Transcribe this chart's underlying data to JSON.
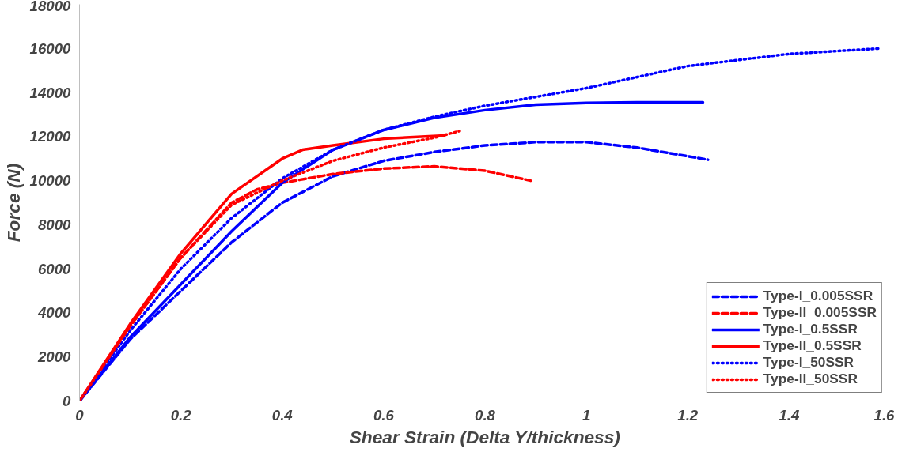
{
  "chart_data": {
    "type": "line",
    "xlabel": "Shear Strain (Delta Y/thickness)",
    "ylabel": "Force (N)",
    "xlim": [
      0,
      1.6
    ],
    "ylim": [
      0,
      18000
    ],
    "xticks": [
      0,
      0.2,
      0.4,
      0.6,
      0.8,
      1,
      1.2,
      1.4,
      1.6
    ],
    "yticks": [
      0,
      2000,
      4000,
      6000,
      8000,
      10000,
      12000,
      14000,
      16000,
      18000
    ],
    "grid": false,
    "legend": "bottom right",
    "series": [
      {
        "name": "Type-I_0.005SSR",
        "color": "#0000ff",
        "line_style": "dashed",
        "x": [
          0,
          0.1,
          0.2,
          0.3,
          0.4,
          0.5,
          0.6,
          0.7,
          0.8,
          0.9,
          1.0,
          1.1,
          1.24
        ],
        "values": [
          0,
          2800,
          5000,
          7200,
          9000,
          10200,
          10900,
          11300,
          11600,
          11750,
          11750,
          11500,
          10950
        ]
      },
      {
        "name": "Type-II_0.005SSR",
        "color": "#ff0000",
        "line_style": "dashed",
        "x": [
          0,
          0.1,
          0.2,
          0.3,
          0.35,
          0.4,
          0.5,
          0.6,
          0.7,
          0.8,
          0.89
        ],
        "values": [
          0,
          3400,
          6500,
          9000,
          9600,
          9900,
          10300,
          10550,
          10650,
          10450,
          10000
        ]
      },
      {
        "name": "Type-I_0.5SSR",
        "color": "#0000ff",
        "line_style": "solid",
        "x": [
          0,
          0.1,
          0.2,
          0.3,
          0.4,
          0.5,
          0.6,
          0.7,
          0.8,
          0.9,
          1.0,
          1.1,
          1.23
        ],
        "values": [
          0,
          2900,
          5300,
          7700,
          9900,
          11400,
          12300,
          12850,
          13200,
          13450,
          13530,
          13550,
          13550
        ]
      },
      {
        "name": "Type-II_0.5SSR",
        "color": "#ff0000",
        "line_style": "solid",
        "x": [
          0,
          0.1,
          0.2,
          0.3,
          0.4,
          0.44,
          0.5,
          0.6,
          0.72
        ],
        "values": [
          0,
          3500,
          6700,
          9400,
          11000,
          11400,
          11600,
          11900,
          12050
        ]
      },
      {
        "name": "Type-I_50SSR",
        "color": "#0000ff",
        "line_style": "dotted",
        "x": [
          0,
          0.1,
          0.2,
          0.3,
          0.4,
          0.5,
          0.6,
          0.7,
          0.8,
          1.0,
          1.2,
          1.4,
          1.58
        ],
        "values": [
          0,
          3200,
          6000,
          8300,
          10100,
          11400,
          12300,
          12900,
          13400,
          14200,
          15200,
          15750,
          16000
        ]
      },
      {
        "name": "Type-II_50SSR",
        "color": "#ff0000",
        "line_style": "dotted",
        "x": [
          0,
          0.1,
          0.2,
          0.3,
          0.4,
          0.5,
          0.6,
          0.7,
          0.75
        ],
        "values": [
          0,
          3400,
          6500,
          8900,
          10000,
          10900,
          11500,
          11950,
          12250
        ]
      }
    ]
  }
}
